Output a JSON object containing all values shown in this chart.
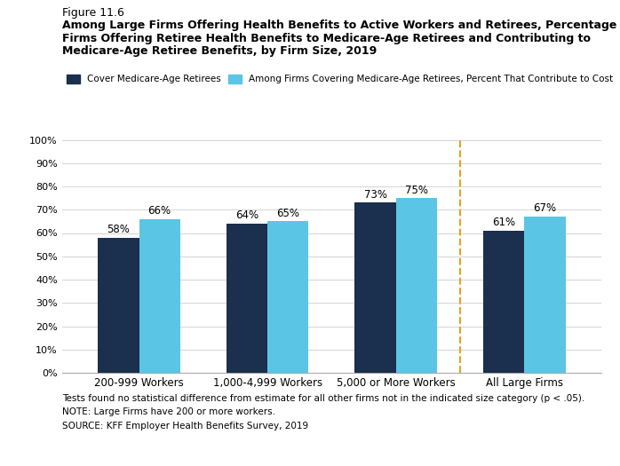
{
  "figure_label": "Figure 11.6",
  "title_line1": "Among Large Firms Offering Health Benefits to Active Workers and Retirees, Percentage of",
  "title_line2": "Firms Offering Retiree Health Benefits to Medicare-Age Retirees and Contributing to",
  "title_line3": "Medicare-Age Retiree Benefits, by Firm Size, 2019",
  "categories": [
    "200-999 Workers",
    "1,000-4,999 Workers",
    "5,000 or More Workers",
    "All Large Firms"
  ],
  "series1_label": "Cover Medicare-Age Retirees",
  "series2_label": "Among Firms Covering Medicare-Age Retirees, Percent That Contribute to Cost",
  "series1_values": [
    58,
    64,
    73,
    61
  ],
  "series2_values": [
    66,
    65,
    75,
    67
  ],
  "series1_color": "#1b2f4e",
  "series2_color": "#5bc5e5",
  "bar_width": 0.32,
  "ylim": [
    0,
    100
  ],
  "yticks": [
    0,
    10,
    20,
    30,
    40,
    50,
    60,
    70,
    80,
    90,
    100
  ],
  "ytick_labels": [
    "0%",
    "10%",
    "20%",
    "30%",
    "40%",
    "50%",
    "60%",
    "70%",
    "80%",
    "90%",
    "100%"
  ],
  "dashed_line_color": "#e8a020",
  "dashed_line_x": 2.5,
  "note1": "Tests found no statistical difference from estimate for all other firms not in the indicated size category (p < .05).",
  "note2": "NOTE: Large Firms have 200 or more workers.",
  "note3": "SOURCE: KFF Employer Health Benefits Survey, 2019",
  "bg_color": "#ffffff"
}
